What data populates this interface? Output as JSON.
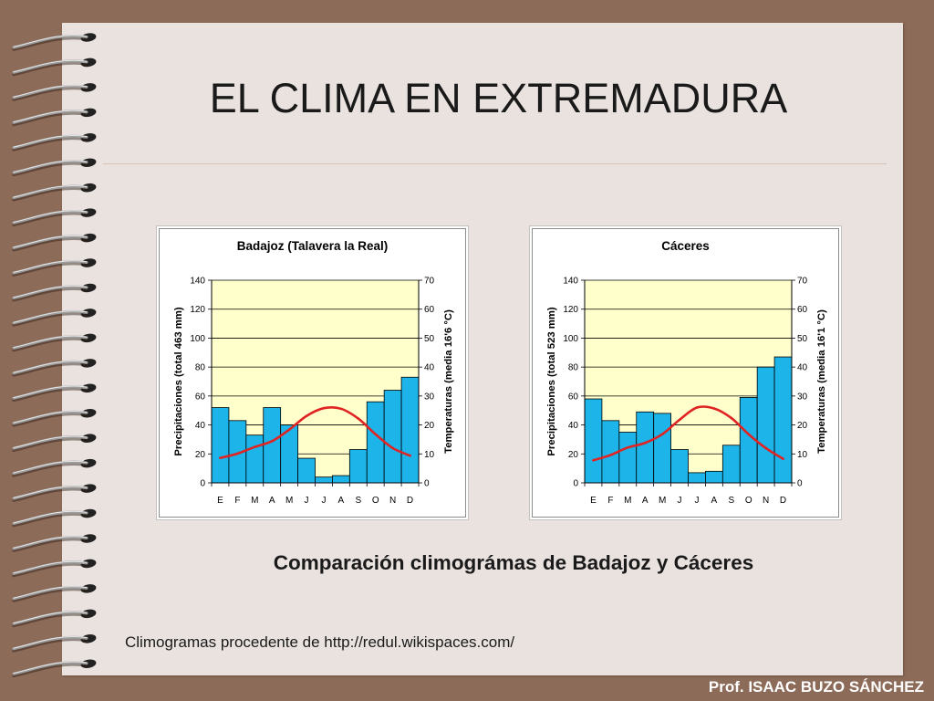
{
  "slide": {
    "title": "EL CLIMA EN EXTREMADURA",
    "caption": "Comparación climográmas de Badajoz y Cáceres",
    "source": "Climogramas procedente de http://redul.wikispaces.com/",
    "author": "Prof. ISAAC BUZO SÁNCHEZ"
  },
  "colors": {
    "background": "#8d6b59",
    "page": "#e9e2df",
    "rule": "#d6c3b8",
    "text": "#1a1a1a",
    "author_text": "#ffffff",
    "ring_wire": "#9c9c9c",
    "ring_hole": "#222222",
    "plot_fill": "#ffffcc",
    "bars": "#1cb4e9",
    "temperature_line": "#e02323"
  },
  "chart_data": [
    {
      "type": "bar",
      "title": "Badajoz (Talavera la Real)",
      "categories": [
        "E",
        "F",
        "M",
        "A",
        "M",
        "J",
        "J",
        "A",
        "S",
        "O",
        "N",
        "D"
      ],
      "ylabel": "Precipitaciones (total 463 mm)",
      "y2label": "Temperaturas (media 16'6 °C)",
      "ylim": [
        0,
        140
      ],
      "y2lim": [
        0,
        70
      ],
      "yticks": [
        0,
        20,
        40,
        60,
        80,
        100,
        120,
        140
      ],
      "y2ticks": [
        0,
        10,
        20,
        30,
        40,
        50,
        60,
        70
      ],
      "grid": true,
      "legend": "none",
      "series": [
        {
          "type": "bar",
          "axis": "left",
          "values": [
            52,
            43,
            33,
            52,
            40,
            17,
            4,
            5,
            23,
            56,
            64,
            73
          ]
        },
        {
          "type": "line",
          "axis": "right",
          "values": [
            8.6,
            10.1,
            12.4,
            14.4,
            18.4,
            23.1,
            25.8,
            25.6,
            22.2,
            16.8,
            12.0,
            9.4
          ]
        }
      ]
    },
    {
      "type": "bar",
      "title": "Cáceres",
      "categories": [
        "E",
        "F",
        "M",
        "A",
        "M",
        "J",
        "J",
        "A",
        "S",
        "O",
        "N",
        "D"
      ],
      "ylabel": "Precipitaciones (total 523 mm)",
      "y2label": "Temperaturas (media 16'1 °C)",
      "ylim": [
        0,
        140
      ],
      "y2lim": [
        0,
        70
      ],
      "yticks": [
        0,
        20,
        40,
        60,
        80,
        100,
        120,
        140
      ],
      "y2ticks": [
        0,
        10,
        20,
        30,
        40,
        50,
        60,
        70
      ],
      "grid": true,
      "legend": "none",
      "series": [
        {
          "type": "bar",
          "axis": "left",
          "values": [
            58,
            43,
            35,
            49,
            48,
            23,
            7,
            8,
            26,
            59,
            80,
            87
          ]
        },
        {
          "type": "line",
          "axis": "right",
          "values": [
            7.8,
            9.6,
            12.2,
            13.8,
            16.8,
            21.8,
            26.0,
            25.7,
            22.4,
            16.8,
            12.0,
            8.3
          ]
        }
      ]
    }
  ]
}
